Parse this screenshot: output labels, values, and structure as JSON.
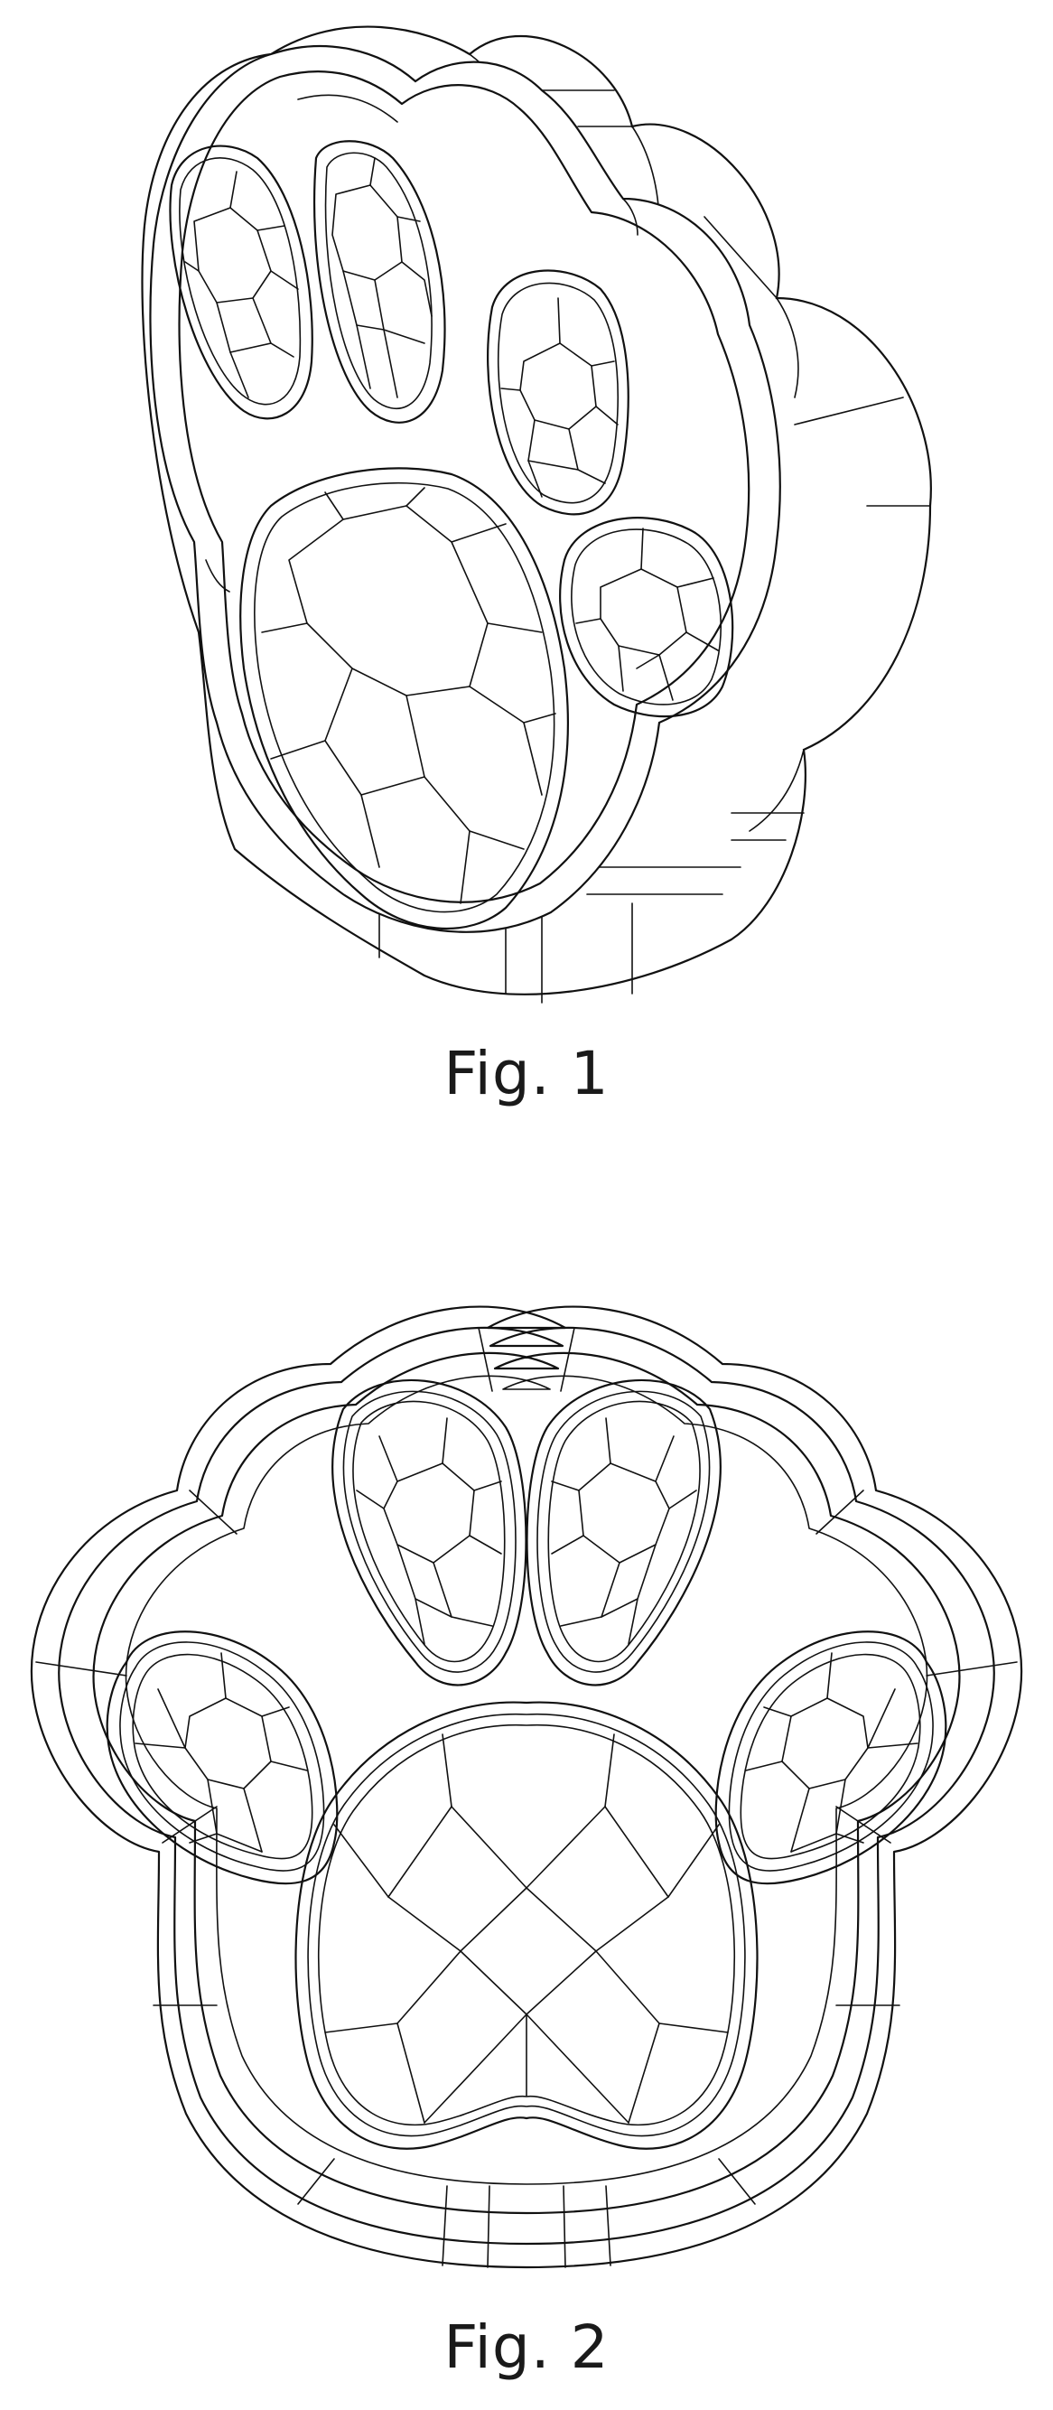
{
  "figures": [
    {
      "label": "Fig. 1"
    },
    {
      "label": "Fig. 2"
    }
  ]
}
